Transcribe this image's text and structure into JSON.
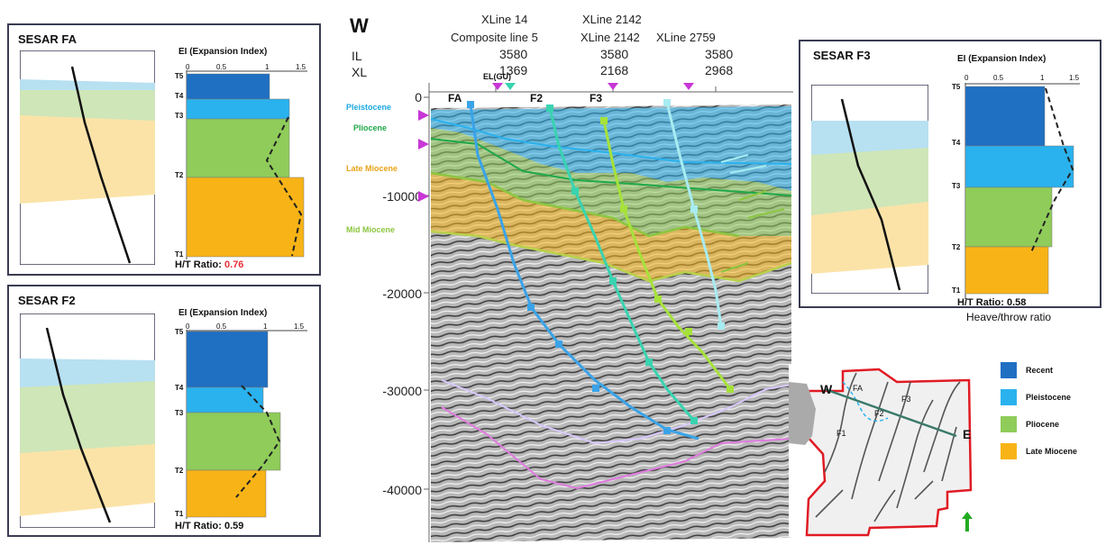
{
  "panel_fa": {
    "title": "SESAR FA",
    "ei_title": "EI (Expansion Index)",
    "ticks": [
      "0",
      "0.5",
      "1",
      "1.5"
    ],
    "tops": [
      "T5",
      "T4",
      "T3",
      "T2",
      "T1"
    ],
    "ratio_label": "H/T Ratio:",
    "ratio_value": "0.76"
  },
  "panel_f2": {
    "title": "SESAR F2",
    "ei_title": "EI (Expansion Index)",
    "ticks": [
      "0",
      "0.5",
      "1",
      "1.5"
    ],
    "tops": [
      "T5",
      "T4",
      "T3",
      "T2",
      "T1"
    ],
    "ratio_label": "H/T Ratio: 0.59"
  },
  "panel_f3": {
    "title": "SESAR F3",
    "ei_title": "EI (Expansion Index)",
    "ticks": [
      "0",
      "0.5",
      "1",
      "1.5"
    ],
    "tops": [
      "T5",
      "T4",
      "T3",
      "T2",
      "T1"
    ],
    "ratio_label": "H/T Ratio: 0.58",
    "caption": "Heave/throw ratio"
  },
  "section": {
    "direction": "W",
    "row_il": "IL",
    "row_xl": "XL",
    "lines": [
      {
        "name_1": "XLine 14",
        "name_2": "Composite line 5",
        "il": "3580",
        "xl": "1369"
      },
      {
        "name_1": "XLine 2142",
        "name_2": "XLine 2142",
        "il": "3580",
        "xl": "2168"
      },
      {
        "name_1": "",
        "name_2": "XLine 2759",
        "il": "3580",
        "xl": "2968"
      }
    ],
    "well": "EL(GU)",
    "faults": [
      "FA",
      "F2",
      "F3"
    ],
    "depth_ticks": [
      "0",
      "-10000",
      "-20000",
      "-30000",
      "-40000"
    ],
    "units": [
      {
        "name": "Pleistocene",
        "color": "#1aa9e0"
      },
      {
        "name": "Pliocene",
        "color": "#1fa84a"
      },
      {
        "name": "Late Miocene",
        "color": "#e8a317"
      },
      {
        "name": "Mid Miocene",
        "color": "#8cc63f"
      }
    ]
  },
  "map": {
    "w": "W",
    "e": "E",
    "faults": [
      "FA",
      "F3",
      "F2",
      "F1"
    ]
  },
  "legend": [
    {
      "label": "Recent",
      "color": "#1f6fc2"
    },
    {
      "label": "Pleistocene",
      "color": "#2ab2ee"
    },
    {
      "label": "Pliocene",
      "color": "#8fcc5a"
    },
    {
      "label": "Late Miocene",
      "color": "#f8b417"
    }
  ],
  "colors": {
    "recent": "#1f6fc2",
    "pleistocene": "#2ab2ee",
    "pliocene": "#8fcc5a",
    "late_miocene": "#f8b417",
    "panel_border": "#3a3c52",
    "ratio_highlight": "#e8303a"
  }
}
